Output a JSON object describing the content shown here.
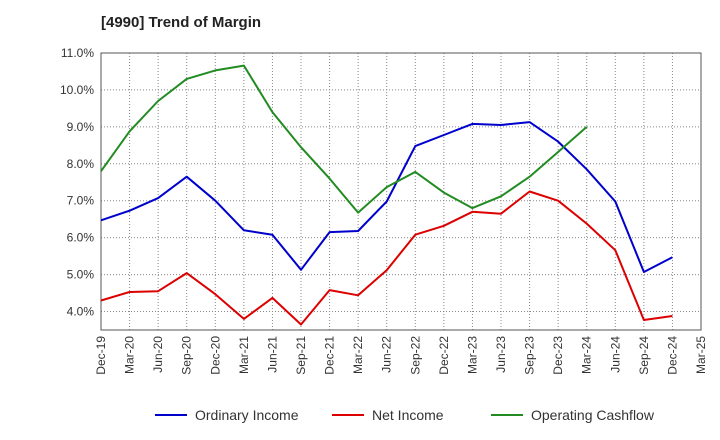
{
  "chart_data": {
    "type": "line",
    "title": "[4990]  Trend of Margin",
    "xlabel": "",
    "ylabel": "",
    "x": [
      "Dec-19",
      "Mar-20",
      "Jun-20",
      "Sep-20",
      "Dec-20",
      "Mar-21",
      "Jun-21",
      "Sep-21",
      "Dec-21",
      "Mar-22",
      "Jun-22",
      "Sep-22",
      "Dec-22",
      "Mar-23",
      "Jun-23",
      "Sep-23",
      "Dec-23",
      "Mar-24",
      "Jun-24",
      "Sep-24",
      "Dec-24",
      "Mar-25"
    ],
    "ylim": [
      3.5,
      11.0
    ],
    "yticks": [
      4.0,
      5.0,
      6.0,
      7.0,
      8.0,
      9.0,
      10.0,
      11.0
    ],
    "ytick_labels": [
      "4.0%",
      "5.0%",
      "6.0%",
      "7.0%",
      "8.0%",
      "9.0%",
      "10.0%",
      "11.0%"
    ],
    "grid": true,
    "legend_position": "bottom",
    "series": [
      {
        "name": "Ordinary Income",
        "color": "#0000cc",
        "values": [
          6.47,
          6.73,
          7.07,
          7.65,
          7.0,
          6.2,
          6.08,
          5.13,
          6.15,
          6.18,
          6.98,
          8.48,
          8.78,
          9.08,
          9.05,
          9.13,
          8.6,
          7.85,
          6.98,
          5.07,
          5.47,
          null
        ]
      },
      {
        "name": "Net Income",
        "color": "#dd0000",
        "values": [
          4.3,
          4.53,
          4.55,
          5.04,
          4.47,
          3.8,
          4.37,
          3.65,
          4.58,
          4.44,
          5.12,
          6.08,
          6.32,
          6.7,
          6.65,
          7.25,
          7.0,
          6.38,
          5.66,
          3.77,
          3.88,
          null
        ]
      },
      {
        "name": "Operating Cashflow",
        "color": "#228b22",
        "values": [
          7.8,
          8.88,
          9.7,
          10.3,
          10.53,
          10.66,
          9.4,
          8.45,
          7.6,
          6.68,
          7.37,
          7.78,
          7.22,
          6.8,
          7.12,
          7.65,
          8.32,
          9.0,
          null,
          null,
          null,
          null
        ]
      }
    ]
  }
}
